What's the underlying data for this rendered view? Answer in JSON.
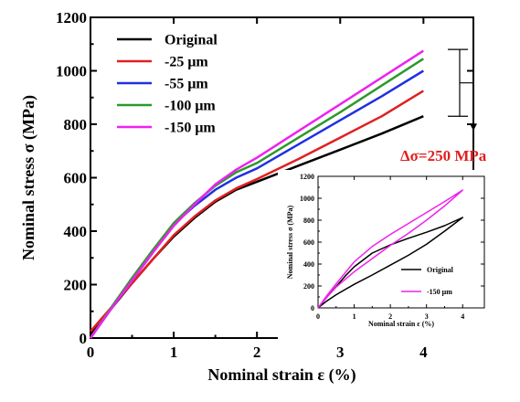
{
  "chart_data": [
    {
      "type": "line",
      "title": "",
      "xlabel": "Nominal strain ε (%)",
      "ylabel": "Nominal stress σ (MPa)",
      "xlim": [
        0,
        4.6
      ],
      "ylim": [
        0,
        1200
      ],
      "xticks": [
        "0",
        "1",
        "2",
        "3",
        "4"
      ],
      "yticks": [
        "0",
        "200",
        "400",
        "600",
        "800",
        "1000",
        "1200"
      ],
      "legend_position": "top-left",
      "grid": false,
      "series": [
        {
          "name": "Original",
          "color": "#000000",
          "x": [
            0,
            0.25,
            0.5,
            0.75,
            1.0,
            1.25,
            1.5,
            1.75,
            2.0,
            2.5,
            3.0,
            3.5,
            4.0
          ],
          "y": [
            15,
            110,
            205,
            295,
            380,
            450,
            510,
            555,
            585,
            645,
            705,
            765,
            830
          ]
        },
        {
          "name": "-25 μm",
          "color": "#e02020",
          "x": [
            0,
            0.25,
            0.5,
            0.75,
            1.0,
            1.25,
            1.5,
            1.75,
            2.0,
            2.5,
            3.0,
            3.5,
            4.0
          ],
          "y": [
            25,
            115,
            205,
            295,
            385,
            455,
            515,
            560,
            595,
            670,
            750,
            830,
            925
          ]
        },
        {
          "name": "-55 μm",
          "color": "#2030e0",
          "x": [
            0,
            0.25,
            0.5,
            0.75,
            1.0,
            1.25,
            1.5,
            1.75,
            2.0,
            2.5,
            3.0,
            3.5,
            4.0
          ],
          "y": [
            0,
            110,
            215,
            320,
            425,
            495,
            555,
            600,
            635,
            725,
            815,
            905,
            1000
          ]
        },
        {
          "name": "-100 μm",
          "color": "#2a9a2a",
          "x": [
            0,
            0.25,
            0.5,
            0.75,
            1.0,
            1.25,
            1.5,
            1.75,
            2.0,
            2.5,
            3.0,
            3.5,
            4.0
          ],
          "y": [
            0,
            115,
            225,
            330,
            430,
            505,
            570,
            620,
            655,
            750,
            845,
            945,
            1045
          ]
        },
        {
          "name": "-150 μm",
          "color": "#ee22ee",
          "x": [
            0,
            0.25,
            0.5,
            0.75,
            1.0,
            1.25,
            1.5,
            1.75,
            2.0,
            2.5,
            3.0,
            3.5,
            4.0
          ],
          "y": [
            0,
            110,
            215,
            320,
            420,
            500,
            575,
            630,
            675,
            775,
            875,
            975,
            1075
          ]
        }
      ],
      "annotations": [
        {
          "text": "Δσ=250 MPa",
          "color": "#e02020",
          "bracket_y": [
            830,
            1080
          ]
        }
      ]
    },
    {
      "type": "line",
      "title": "",
      "xlabel": "Nominal strain ε (%)",
      "ylabel": "Nominal stress σ (MPa)",
      "xlim": [
        0,
        4.6
      ],
      "ylim": [
        0,
        1200
      ],
      "xticks": [
        "0",
        "1",
        "2",
        "3",
        "4"
      ],
      "yticks": [
        "0",
        "200",
        "400",
        "600",
        "800",
        "1000",
        "1200"
      ],
      "legend_position": "bottom-right",
      "grid": false,
      "series": [
        {
          "name": "Original",
          "color": "#000000",
          "x": [
            0,
            0.25,
            0.5,
            0.75,
            1.0,
            1.5,
            2.0,
            2.5,
            3.0,
            3.5,
            4.0,
            3.5,
            3.0,
            2.5,
            2.0,
            1.5,
            1.0,
            0.5,
            0.25,
            0
          ],
          "y": [
            0,
            100,
            195,
            290,
            375,
            500,
            575,
            635,
            690,
            750,
            825,
            700,
            580,
            480,
            390,
            300,
            215,
            120,
            65,
            0
          ]
        },
        {
          "name": "-150 μm",
          "color": "#ee22ee",
          "x": [
            0,
            0.25,
            0.5,
            0.75,
            1.0,
            1.5,
            2.0,
            2.5,
            3.0,
            3.5,
            4.0,
            3.5,
            3.0,
            2.5,
            2.0,
            1.5,
            1.0,
            0.5,
            0.25,
            0
          ],
          "y": [
            0,
            115,
            220,
            320,
            420,
            560,
            670,
            770,
            870,
            970,
            1075,
            930,
            800,
            680,
            570,
            450,
            330,
            190,
            100,
            0
          ]
        }
      ]
    }
  ]
}
